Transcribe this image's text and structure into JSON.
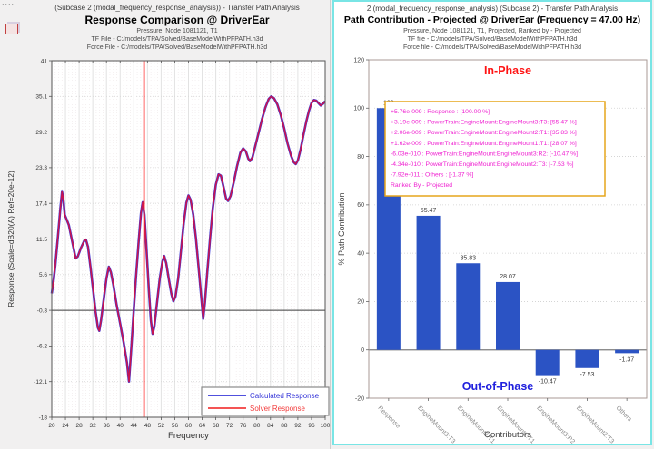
{
  "left_panel": {
    "header": {
      "line1": "(Subcase 2 (modal_frequency_response_analysis)) - Transfer Path Analysis",
      "title": "Response Comparison @ DriverEar",
      "line3": "Pressure, Node 1081121, T1",
      "line4": "TF File - C:/models/TPA/Solved/BaseModelWithPFPATH.h3d",
      "line5": "Force File - C:/models/TPA/Solved/BaseModelWithPFPATH.h3d"
    }
  },
  "right_panel": {
    "header": {
      "line1": "2 (modal_frequency_response_analysis) (Subcase 2) - Transfer Path Analysis",
      "title": "Path Contribution - Projected @ DriverEar (Frequency = 47.00 Hz)",
      "line3": "Pressure, Node 1081121, T1, Projected, Ranked by - Projected",
      "line4": "TF file - C:/models/TPA/Solved/BaseModelWithPFPATH.h3d",
      "line5": "Force file - C:/models/TPA/Solved/BaseModelWithPFPATH.h3d"
    }
  },
  "chart_data": [
    {
      "type": "line",
      "title": "Response Comparison @ DriverEar",
      "xlabel": "Frequency",
      "ylabel": "Response (Scale=dB20(A) Ref=20e-12)",
      "xlim": [
        20,
        100
      ],
      "ylim": [
        -18,
        41
      ],
      "xticks": [
        20,
        24,
        28,
        32,
        36,
        40,
        44,
        48,
        52,
        56,
        60,
        64,
        68,
        72,
        76,
        80,
        84,
        88,
        92,
        96,
        100
      ],
      "yticks": [
        41,
        35.1,
        29.2,
        23.3,
        17.4,
        11.5,
        5.6,
        -0.3,
        -6.2,
        -12.1,
        -18
      ],
      "grid": true,
      "hline_y": -0.3,
      "cursor_x": 47,
      "cursor_color": "#ff2626",
      "curve_color": "#c81450",
      "x": [
        20,
        20.5,
        21,
        21.8,
        22.5,
        23,
        23.4,
        23.8,
        24.3,
        25,
        26,
        27,
        27.6,
        28.5,
        29.5,
        30,
        30.6,
        31.3,
        32,
        32.8,
        33.5,
        33.9,
        34.4,
        35.2,
        36,
        36.7,
        37.3,
        38,
        39,
        40,
        41,
        42,
        42.6,
        43.1,
        43.8,
        44.6,
        45.4,
        46.1,
        46.6,
        47.1,
        47.7,
        48.4,
        49,
        49.5,
        50,
        50.8,
        51.6,
        52.4,
        52.9,
        53.5,
        54.2,
        55,
        55.6,
        56.2,
        57,
        57.8,
        58.6,
        59.4,
        60,
        60.6,
        61.4,
        62.2,
        63,
        63.8,
        64.3,
        64.8,
        65.5,
        66.3,
        67.1,
        68,
        68.8,
        69.5,
        70.3,
        71,
        71.6,
        72.3,
        73.2,
        74.2,
        75.2,
        76,
        76.8,
        77.5,
        78,
        78.7,
        79.5,
        80.5,
        81.5,
        82.5,
        83.5,
        84.2,
        85,
        86,
        87,
        88,
        89,
        90,
        90.8,
        91.4,
        92,
        92.8,
        93.6,
        94.5,
        95.3,
        96,
        96.7,
        97.4,
        98,
        98.7,
        99.4,
        100
      ],
      "y": [
        2.5,
        4.5,
        7,
        12,
        16.5,
        19.3,
        18,
        15.5,
        14.8,
        13.8,
        11,
        8.3,
        8.6,
        10,
        11.2,
        11.4,
        10.2,
        7,
        3.5,
        -0.5,
        -3.2,
        -3.7,
        -2,
        1.5,
        5,
        6.9,
        6,
        4,
        0.5,
        -2.5,
        -5.5,
        -9,
        -12.1,
        -8,
        -2,
        5,
        11,
        15.8,
        17.6,
        15.5,
        10,
        3,
        -2,
        -4.2,
        -3,
        1,
        5,
        7.8,
        8.7,
        7.5,
        5,
        2.4,
        1.2,
        2,
        5,
        9.5,
        14,
        17.5,
        18.7,
        18,
        15.5,
        11.5,
        6.5,
        1.5,
        -1.7,
        1,
        6,
        11.5,
        16.5,
        20.5,
        22.2,
        22,
        20,
        18.2,
        17.8,
        18.6,
        20.8,
        23.5,
        25.8,
        26.5,
        26,
        24.8,
        24.4,
        25,
        26.8,
        29,
        31.3,
        33.3,
        34.7,
        35.1,
        34.8,
        33.8,
        32,
        29.8,
        27.3,
        25.3,
        24.2,
        23.9,
        24.5,
        26.3,
        28.6,
        31,
        32.8,
        34,
        34.5,
        34.4,
        34,
        33.6,
        33.9,
        34.3
      ],
      "series": [
        {
          "name": "Calculated Response",
          "color": "#3737d8"
        },
        {
          "name": "Solver Response",
          "color": "#f23b3b"
        }
      ],
      "legend_position": "bottom-right"
    },
    {
      "type": "bar",
      "title": "Path Contribution - Projected @ DriverEar (Frequency = 47.00 Hz)",
      "xlabel": "Contributors",
      "ylabel": "% Path Contribution",
      "categories": [
        "Response",
        "EngineMount3:T3",
        "EngineMount2:T1",
        "EngineMount1:T1",
        "EngineMount3:R2",
        "EngineMount2:T3",
        "Others"
      ],
      "values": [
        100,
        55.47,
        35.83,
        28.07,
        -10.47,
        -7.53,
        -1.37
      ],
      "value_labels": [
        "100",
        "55.47",
        "35.83",
        "28.07",
        "-10.47",
        "-7.53",
        "-1.37"
      ],
      "bar_color": "#2b53c4",
      "ylim": [
        -20,
        120
      ],
      "yticks": [
        120,
        100,
        80,
        60,
        40,
        20,
        0,
        -20
      ],
      "grid": true,
      "in_phase_label": "In-Phase",
      "in_phase_color": "#ff1414",
      "out_of_phase_label": "Out-of-Phase",
      "out_of_phase_color": "#2020dd",
      "annotation": {
        "border_color": "#e6a51c",
        "text_color": "#ef1fd0",
        "lines": [
          "+5.76e-009 : Response    : [100.00 %]",
          "+3.19e-009 : PowerTrain:EngineMount:EngineMount3:T3: [55.47 %]",
          "+2.06e-009 : PowerTrain:EngineMount:EngineMount2:T1: [35.83 %]",
          "+1.62e-009 : PowerTrain:EngineMount:EngineMount1:T1: [28.07 %]",
          "-6.03e-010 : PowerTrain:EngineMount:EngineMount3:R2: [-10.47 %]",
          "-4.34e-010 : PowerTrain:EngineMount:EngineMount2:T3: [-7.53 %]",
          "-7.92e-011 : Others    : [-1.37 %]",
          "Ranked By - Projected"
        ]
      }
    }
  ]
}
